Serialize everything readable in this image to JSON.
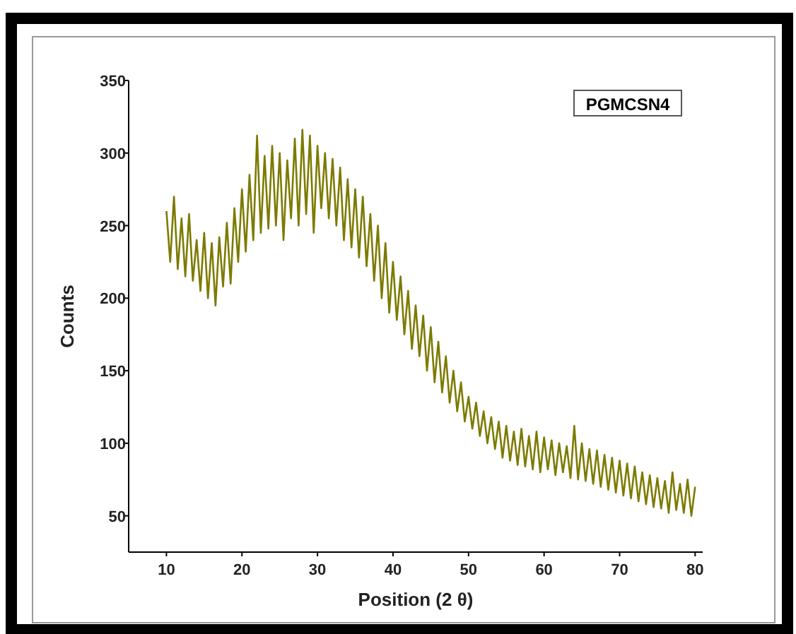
{
  "chart_data": {
    "type": "line",
    "xlabel": "Position (2 θ)",
    "ylabel": "Counts",
    "annotations": [
      "PGMCSN4"
    ],
    "xlim": [
      5,
      81
    ],
    "ylim": [
      25,
      350
    ],
    "xticks": [
      10,
      20,
      30,
      40,
      50,
      60,
      70,
      80
    ],
    "yticks": [
      50,
      100,
      150,
      200,
      250,
      300,
      350
    ],
    "grid": false,
    "marker": "none",
    "line_style": "solid",
    "x": [
      10,
      10.5,
      11,
      11.5,
      12,
      12.5,
      13,
      13.5,
      14,
      14.5,
      15,
      15.5,
      16,
      16.5,
      17,
      17.5,
      18,
      18.5,
      19,
      19.5,
      20,
      20.5,
      21,
      21.5,
      22,
      22.5,
      23,
      23.5,
      24,
      24.5,
      25,
      25.5,
      26,
      26.5,
      27,
      27.5,
      28,
      28.5,
      29,
      29.5,
      30,
      30.5,
      31,
      31.5,
      32,
      32.5,
      33,
      33.5,
      34,
      34.5,
      35,
      35.5,
      36,
      36.5,
      37,
      37.5,
      38,
      38.5,
      39,
      39.5,
      40,
      40.5,
      41,
      41.5,
      42,
      42.5,
      43,
      43.5,
      44,
      44.5,
      45,
      45.5,
      46,
      46.5,
      47,
      47.5,
      48,
      48.5,
      49,
      49.5,
      50,
      50.5,
      51,
      51.5,
      52,
      52.5,
      53,
      53.5,
      54,
      54.5,
      55,
      55.5,
      56,
      56.5,
      57,
      57.5,
      58,
      58.5,
      59,
      59.5,
      60,
      60.5,
      61,
      61.5,
      62,
      62.5,
      63,
      63.5,
      64,
      64.5,
      65,
      65.5,
      66,
      66.5,
      67,
      67.5,
      68,
      68.5,
      69,
      69.5,
      70,
      70.5,
      71,
      71.5,
      72,
      72.5,
      73,
      73.5,
      74,
      74.5,
      75,
      75.5,
      76,
      76.5,
      77,
      77.5,
      78,
      78.5,
      79,
      79.5,
      80
    ],
    "series": [
      {
        "color": "#7d7a00",
        "values": [
          260,
          225,
          270,
          220,
          255,
          215,
          258,
          212,
          240,
          205,
          245,
          200,
          238,
          195,
          242,
          208,
          252,
          210,
          262,
          225,
          275,
          232,
          285,
          240,
          312,
          245,
          298,
          248,
          305,
          250,
          300,
          240,
          295,
          255,
          310,
          250,
          316,
          258,
          312,
          245,
          305,
          262,
          300,
          255,
          296,
          250,
          290,
          240,
          282,
          235,
          275,
          228,
          270,
          222,
          258,
          212,
          250,
          200,
          238,
          190,
          225,
          185,
          215,
          175,
          205,
          165,
          195,
          160,
          188,
          150,
          180,
          142,
          170,
          135,
          160,
          128,
          150,
          122,
          142,
          115,
          132,
          110,
          128,
          105,
          122,
          100,
          118,
          96,
          115,
          90,
          112,
          88,
          108,
          85,
          110,
          84,
          105,
          82,
          108,
          80,
          104,
          82,
          102,
          78,
          100,
          80,
          98,
          76,
          112,
          75,
          100,
          74,
          96,
          72,
          95,
          70,
          92,
          68,
          90,
          66,
          88,
          64,
          86,
          62,
          84,
          60,
          80,
          58,
          78,
          56,
          76,
          55,
          74,
          52,
          80,
          54,
          72,
          52,
          75,
          50,
          70
        ]
      }
    ]
  }
}
